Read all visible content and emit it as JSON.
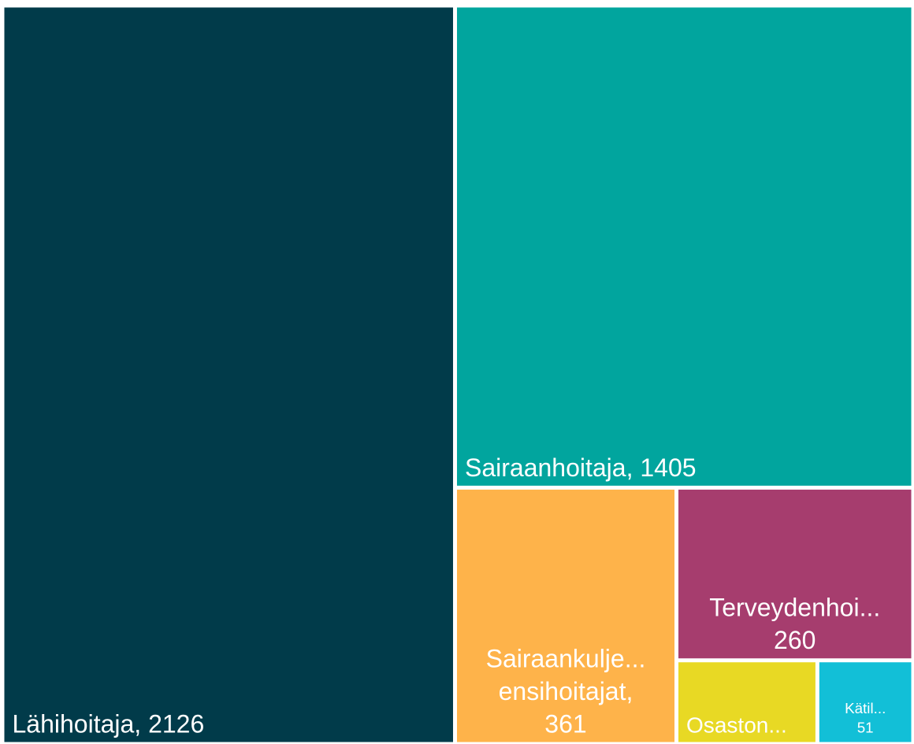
{
  "chart_data": {
    "type": "treemap",
    "values": [
      2126,
      1405,
      361,
      260,
      75,
      51
    ],
    "value_labels": [
      [
        "Lähihoitaja, 2126"
      ],
      [
        "Sairaanhoitaja, 1405"
      ],
      [
        "Sairaankulje...",
        "ensihoitajat,",
        "361"
      ],
      [
        "Terveydenhoi...",
        "260"
      ],
      [
        "Osaston..."
      ],
      [
        "Kätil...",
        "51"
      ]
    ],
    "colors": [
      "#013b4a",
      "#01a59e",
      "#feb34a",
      "#a63d6e",
      "#e8d924",
      "#12bfd7"
    ]
  }
}
